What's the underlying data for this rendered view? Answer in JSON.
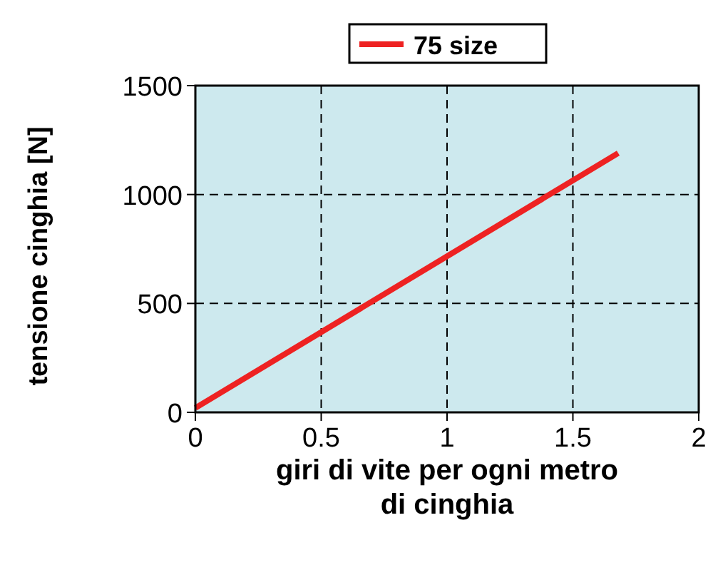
{
  "chart_data": {
    "type": "line",
    "xlabel": "giri di vite per ogni metro di cinghia",
    "ylabel": "tensione cinghia [N]",
    "x": [
      0,
      1.68
    ],
    "series": [
      {
        "name": "75 size",
        "color": "#ee2222",
        "values": [
          20,
          1190
        ]
      }
    ],
    "xlim": [
      0,
      2
    ],
    "xticks": [
      0,
      0.5,
      1,
      1.5,
      2
    ],
    "ylim": [
      0,
      1500
    ],
    "yticks": [
      0,
      500,
      1000,
      1500
    ],
    "grid": true,
    "legend": "top",
    "marker": "none",
    "line_style": "solid"
  }
}
